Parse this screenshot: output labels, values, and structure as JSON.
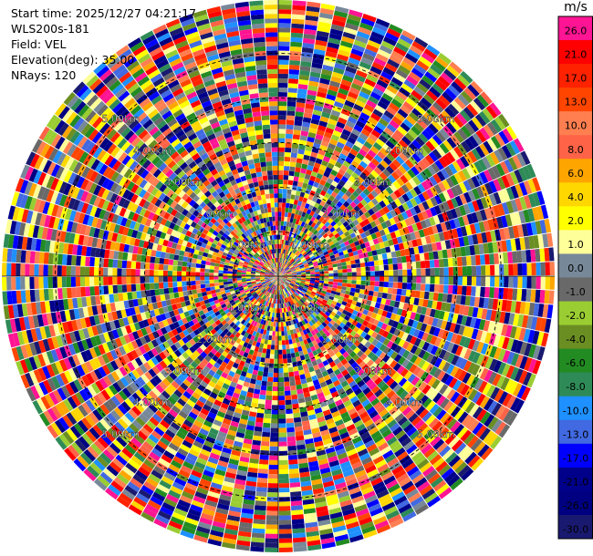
{
  "header": {
    "start_time": "Start time: 2025/12/27 04:21:17",
    "instrument": "WLS200s-181",
    "field": "Field: VEL",
    "elevation": "Elevation(deg): 35.00",
    "nrays": "NRays: 120"
  },
  "chart_data": {
    "type": "heatmap",
    "projection": "polar PPI",
    "field": "VEL",
    "n_rays": 120,
    "n_gates": 60,
    "range_labels": [
      "1.00km",
      "2.00km",
      "3.00km",
      "4.00km",
      "5.00km"
    ],
    "range_values_km": [
      1,
      2,
      3,
      4,
      5
    ],
    "max_range_km": 6.2,
    "colorbar": {
      "unit": "m/s",
      "levels": [
        {
          "label": "26.0",
          "color": "#ff1493"
        },
        {
          "label": "21.0",
          "color": "#ff0000"
        },
        {
          "label": "17.0",
          "color": "#ff2200"
        },
        {
          "label": "13.0",
          "color": "#ff4500"
        },
        {
          "label": "10.0",
          "color": "#ff7f50"
        },
        {
          "label": "8.0",
          "color": "#ff6347"
        },
        {
          "label": "6.0",
          "color": "#ffa500"
        },
        {
          "label": "4.0",
          "color": "#ffd700"
        },
        {
          "label": "2.0",
          "color": "#ffff00"
        },
        {
          "label": "1.0",
          "color": "#ffff99"
        },
        {
          "label": "0.0",
          "color": "#778899"
        },
        {
          "label": "-1.0",
          "color": "#696969"
        },
        {
          "label": "-2.0",
          "color": "#9acd32"
        },
        {
          "label": "-4.0",
          "color": "#6b8e23"
        },
        {
          "label": "-6.0",
          "color": "#228b22"
        },
        {
          "label": "-8.0",
          "color": "#2e8b57"
        },
        {
          "label": "-10.0",
          "color": "#1e90ff"
        },
        {
          "label": "-13.0",
          "color": "#4169e1"
        },
        {
          "label": "-17.0",
          "color": "#0000ff"
        },
        {
          "label": "-21.0",
          "color": "#00008b"
        },
        {
          "label": "-26.0",
          "color": "#000080"
        },
        {
          "label": "-30.0",
          "color": "#191970"
        }
      ]
    }
  }
}
